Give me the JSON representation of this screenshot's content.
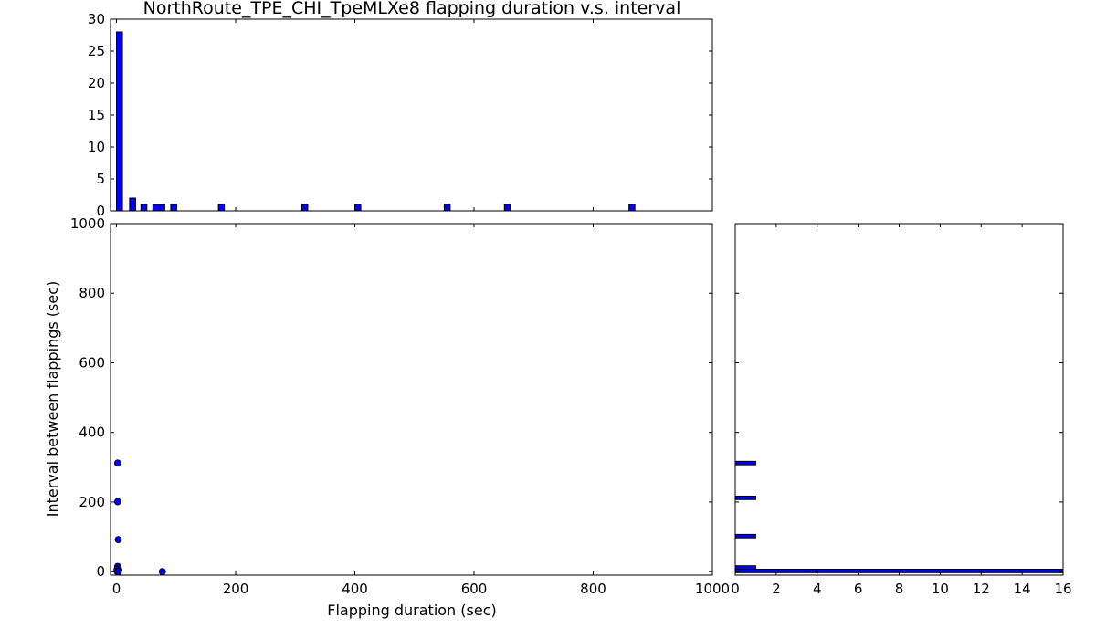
{
  "chart_data": {
    "type": "scatter",
    "title": "NorthRoute_TPE_CHI_TpeMLXe8 flapping duration v.s. interval",
    "colors": {
      "bar": "#0000ff",
      "point": "#0000ff",
      "edge": "#000000"
    },
    "scatter": {
      "xlabel": "Flapping duration (sec)",
      "ylabel": "Interval between flappings (sec)",
      "xlim": [
        -10,
        1000
      ],
      "ylim": [
        -10,
        1000
      ],
      "xticks": [
        "0",
        "200",
        "400",
        "600",
        "800",
        "1000"
      ],
      "yticks": [
        "0",
        "200",
        "400",
        "600",
        "800",
        "1000"
      ],
      "points": [
        {
          "x": 2,
          "y": 312
        },
        {
          "x": 2,
          "y": 201
        },
        {
          "x": 3,
          "y": 92
        },
        {
          "x": 2,
          "y": 15
        },
        {
          "x": 3,
          "y": 10
        },
        {
          "x": 1,
          "y": 6
        },
        {
          "x": 4,
          "y": 4
        },
        {
          "x": 2,
          "y": 2
        },
        {
          "x": 1,
          "y": 1
        },
        {
          "x": 3,
          "y": 0
        },
        {
          "x": 77,
          "y": 0
        }
      ]
    },
    "hist_duration": {
      "ylim": [
        0,
        30
      ],
      "yticks": [
        "0",
        "5",
        "10",
        "15",
        "20",
        "25",
        "30"
      ],
      "bar_width": 10,
      "bars": [
        {
          "x": 5,
          "count": 28
        },
        {
          "x": 27,
          "count": 2
        },
        {
          "x": 46,
          "count": 1
        },
        {
          "x": 66,
          "count": 1
        },
        {
          "x": 76,
          "count": 1
        },
        {
          "x": 96,
          "count": 1
        },
        {
          "x": 176,
          "count": 1
        },
        {
          "x": 316,
          "count": 1
        },
        {
          "x": 405,
          "count": 1
        },
        {
          "x": 555,
          "count": 1
        },
        {
          "x": 656,
          "count": 1
        },
        {
          "x": 865,
          "count": 1
        }
      ]
    },
    "hist_interval": {
      "xlim": [
        0,
        16
      ],
      "xticks": [
        "0",
        "2",
        "4",
        "6",
        "8",
        "10",
        "12",
        "14",
        "16"
      ],
      "bar_height": 10,
      "bars": [
        {
          "y": 312,
          "count": 1
        },
        {
          "y": 212,
          "count": 1
        },
        {
          "y": 102,
          "count": 1
        },
        {
          "y": 12,
          "count": 1
        },
        {
          "y": 2,
          "count": 16
        }
      ]
    }
  }
}
